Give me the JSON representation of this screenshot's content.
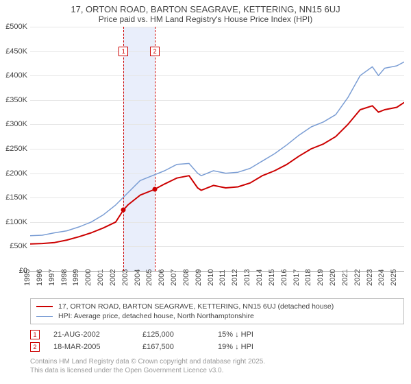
{
  "title": "17, ORTON ROAD, BARTON SEAGRAVE, KETTERING, NN15 6UJ",
  "subtitle": "Price paid vs. HM Land Registry's House Price Index (HPI)",
  "chart": {
    "type": "line",
    "x_start_year": 1995,
    "x_end_year": 2025.6,
    "ylim": [
      0,
      500000
    ],
    "ytick_step": 50000,
    "yticklabels": [
      "£0",
      "£50K",
      "£100K",
      "£150K",
      "£200K",
      "£250K",
      "£300K",
      "£350K",
      "£400K",
      "£450K",
      "£500K"
    ],
    "xticks": [
      1995,
      1996,
      1997,
      1998,
      1999,
      2000,
      2001,
      2002,
      2003,
      2004,
      2005,
      2006,
      2007,
      2008,
      2009,
      2010,
      2011,
      2012,
      2013,
      2014,
      2015,
      2016,
      2017,
      2018,
      2019,
      2020,
      2021,
      2022,
      2023,
      2024,
      2025
    ],
    "background_color": "#ffffff",
    "grid_color": "#e6e6e6",
    "shade_band": {
      "start": 2002.64,
      "end": 2005.21,
      "color": "#e9eefb"
    },
    "series": [
      {
        "name": "property",
        "label": "17, ORTON ROAD, BARTON SEAGRAVE, KETTERING, NN15 6UJ (detached house)",
        "color": "#cc0000",
        "line_width": 2,
        "points": [
          [
            1995,
            55000
          ],
          [
            1996,
            56000
          ],
          [
            1997,
            58000
          ],
          [
            1998,
            63000
          ],
          [
            1999,
            70000
          ],
          [
            2000,
            78000
          ],
          [
            2001,
            88000
          ],
          [
            2002,
            100000
          ],
          [
            2002.64,
            125000
          ],
          [
            2003,
            135000
          ],
          [
            2004,
            155000
          ],
          [
            2005,
            165000
          ],
          [
            2005.21,
            167500
          ],
          [
            2006,
            178000
          ],
          [
            2007,
            190000
          ],
          [
            2008,
            195000
          ],
          [
            2008.7,
            170000
          ],
          [
            2009,
            165000
          ],
          [
            2010,
            175000
          ],
          [
            2011,
            170000
          ],
          [
            2012,
            172000
          ],
          [
            2013,
            180000
          ],
          [
            2014,
            195000
          ],
          [
            2015,
            205000
          ],
          [
            2016,
            218000
          ],
          [
            2017,
            235000
          ],
          [
            2018,
            250000
          ],
          [
            2019,
            260000
          ],
          [
            2020,
            275000
          ],
          [
            2021,
            300000
          ],
          [
            2022,
            330000
          ],
          [
            2023,
            338000
          ],
          [
            2023.5,
            325000
          ],
          [
            2024,
            330000
          ],
          [
            2025,
            335000
          ],
          [
            2025.6,
            345000
          ]
        ]
      },
      {
        "name": "hpi",
        "label": "HPI: Average price, detached house, North Northamptonshire",
        "color": "#7a9dd4",
        "line_width": 1.5,
        "points": [
          [
            1995,
            72000
          ],
          [
            1996,
            73000
          ],
          [
            1997,
            78000
          ],
          [
            1998,
            82000
          ],
          [
            1999,
            90000
          ],
          [
            2000,
            100000
          ],
          [
            2001,
            115000
          ],
          [
            2002,
            135000
          ],
          [
            2003,
            160000
          ],
          [
            2004,
            185000
          ],
          [
            2005,
            195000
          ],
          [
            2006,
            205000
          ],
          [
            2007,
            218000
          ],
          [
            2008,
            220000
          ],
          [
            2008.7,
            200000
          ],
          [
            2009,
            195000
          ],
          [
            2010,
            205000
          ],
          [
            2011,
            200000
          ],
          [
            2012,
            202000
          ],
          [
            2013,
            210000
          ],
          [
            2014,
            225000
          ],
          [
            2015,
            240000
          ],
          [
            2016,
            258000
          ],
          [
            2017,
            278000
          ],
          [
            2018,
            295000
          ],
          [
            2019,
            305000
          ],
          [
            2020,
            320000
          ],
          [
            2021,
            355000
          ],
          [
            2022,
            400000
          ],
          [
            2023,
            418000
          ],
          [
            2023.5,
            400000
          ],
          [
            2024,
            415000
          ],
          [
            2025,
            420000
          ],
          [
            2025.6,
            428000
          ]
        ]
      }
    ],
    "sale_markers": [
      {
        "n": "1",
        "year": 2002.64,
        "price": 125000,
        "box_y": 450000
      },
      {
        "n": "2",
        "year": 2005.21,
        "price": 167500,
        "box_y": 450000
      }
    ]
  },
  "legend": [
    {
      "color": "#cc0000",
      "width": 2,
      "label_ref": "chart.series.0.label"
    },
    {
      "color": "#7a9dd4",
      "width": 1.5,
      "label_ref": "chart.series.1.label"
    }
  ],
  "sales": [
    {
      "n": "1",
      "date": "21-AUG-2002",
      "price": "£125,000",
      "diff": "15% ↓ HPI"
    },
    {
      "n": "2",
      "date": "18-MAR-2005",
      "price": "£167,500",
      "diff": "19% ↓ HPI"
    }
  ],
  "attribution": {
    "line1": "Contains HM Land Registry data © Crown copyright and database right 2025.",
    "line2": "This data is licensed under the Open Government Licence v3.0."
  }
}
